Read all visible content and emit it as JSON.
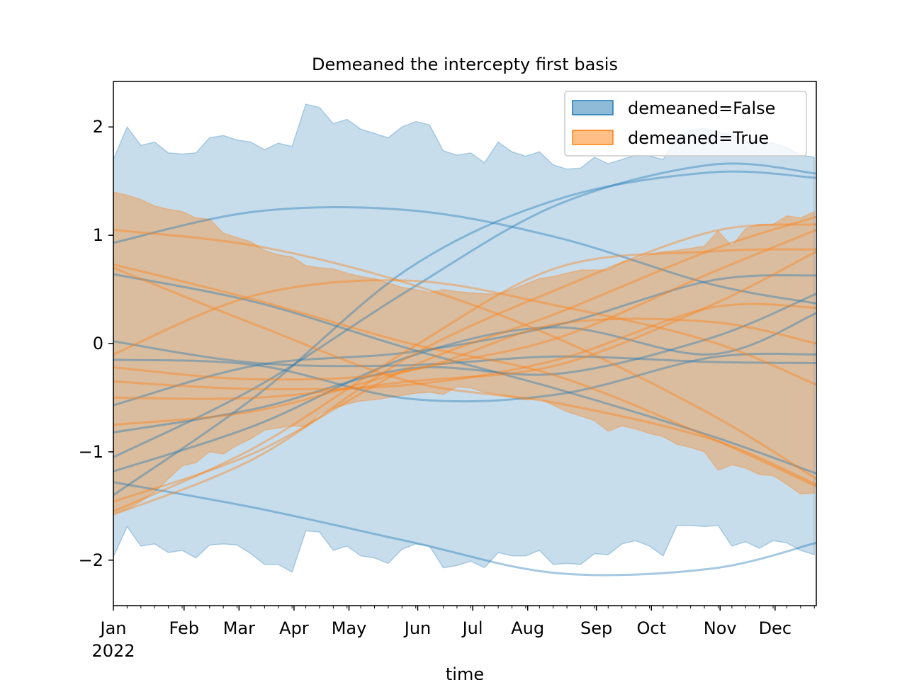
{
  "chart_data": {
    "type": "area",
    "title": "Demeaned the intercepty first basis",
    "xlabel": "time",
    "ylabel": "",
    "xlim": [
      "2022-01-01",
      "2022-12-25"
    ],
    "ylim": [
      -2.42,
      2.42
    ],
    "y_ticks": [
      -2,
      -1,
      0,
      1,
      2
    ],
    "y_tick_labels": [
      "−2",
      "−1",
      "0",
      "1",
      "2"
    ],
    "x_ticks": [
      {
        "date": "2022-01-01",
        "label": "Jan",
        "sublabel": "2022"
      },
      {
        "date": "2022-02-06",
        "label": "Feb",
        "sublabel": ""
      },
      {
        "date": "2022-03-06",
        "label": "Mar",
        "sublabel": ""
      },
      {
        "date": "2022-04-03",
        "label": "Apr",
        "sublabel": ""
      },
      {
        "date": "2022-05-01",
        "label": "May",
        "sublabel": ""
      },
      {
        "date": "2022-06-05",
        "label": "Jun",
        "sublabel": ""
      },
      {
        "date": "2022-07-03",
        "label": "Jul",
        "sublabel": ""
      },
      {
        "date": "2022-07-31",
        "label": "Aug",
        "sublabel": ""
      },
      {
        "date": "2022-09-04",
        "label": "Sep",
        "sublabel": ""
      },
      {
        "date": "2022-10-02",
        "label": "Oct",
        "sublabel": ""
      },
      {
        "date": "2022-11-06",
        "label": "Nov",
        "sublabel": ""
      },
      {
        "date": "2022-12-04",
        "label": "Dec",
        "sublabel": ""
      }
    ],
    "legend": {
      "placement": "top-right",
      "entries": [
        "demeaned=False",
        "demeaned=True"
      ]
    },
    "grid": false,
    "series": [
      {
        "name": "demeaned=False",
        "color": "#1f77b4",
        "band_x": [
          "2022-01-01",
          "2022-01-08",
          "2022-01-15",
          "2022-01-22",
          "2022-01-29",
          "2022-02-05",
          "2022-02-12",
          "2022-02-19",
          "2022-02-26",
          "2022-03-05",
          "2022-03-12",
          "2022-03-19",
          "2022-03-26",
          "2022-04-02",
          "2022-04-09",
          "2022-04-16",
          "2022-04-23",
          "2022-04-30",
          "2022-05-07",
          "2022-05-14",
          "2022-05-21",
          "2022-05-28",
          "2022-06-04",
          "2022-06-11",
          "2022-06-18",
          "2022-06-25",
          "2022-07-02",
          "2022-07-09",
          "2022-07-16",
          "2022-07-23",
          "2022-07-30",
          "2022-08-06",
          "2022-08-13",
          "2022-08-20",
          "2022-08-27",
          "2022-09-03",
          "2022-09-10",
          "2022-09-17",
          "2022-09-24",
          "2022-10-01",
          "2022-10-08",
          "2022-10-15",
          "2022-10-22",
          "2022-10-29",
          "2022-11-05",
          "2022-11-12",
          "2022-11-19",
          "2022-11-26",
          "2022-12-03",
          "2022-12-10",
          "2022-12-17",
          "2022-12-24"
        ],
        "band_upper": [
          1.7,
          2.0,
          1.83,
          1.86,
          1.76,
          1.75,
          1.76,
          1.9,
          1.92,
          1.88,
          1.86,
          1.79,
          1.85,
          1.82,
          2.21,
          2.18,
          2.03,
          2.07,
          1.98,
          1.94,
          1.9,
          2.0,
          2.05,
          2.02,
          1.78,
          1.74,
          1.76,
          1.67,
          1.86,
          1.77,
          1.73,
          1.77,
          1.65,
          1.61,
          1.62,
          1.72,
          1.66,
          1.7,
          1.74,
          1.73,
          1.7,
          1.9,
          1.97,
          1.99,
          1.95,
          1.93,
          1.87,
          1.87,
          1.85,
          1.81,
          1.74,
          1.72
        ],
        "band_lower": [
          -1.97,
          -1.69,
          -1.87,
          -1.85,
          -1.93,
          -1.91,
          -1.98,
          -1.86,
          -1.85,
          -1.86,
          -1.94,
          -2.04,
          -2.04,
          -2.11,
          -1.73,
          -1.74,
          -1.91,
          -1.87,
          -1.96,
          -1.98,
          -2.03,
          -1.9,
          -1.85,
          -1.87,
          -2.07,
          -2.05,
          -2.01,
          -2.07,
          -1.93,
          -1.96,
          -1.96,
          -1.91,
          -2.04,
          -2.03,
          -2.04,
          -1.94,
          -1.95,
          -1.85,
          -1.82,
          -1.87,
          -1.96,
          -1.68,
          -1.68,
          -1.69,
          -1.68,
          -1.87,
          -1.83,
          -1.89,
          -1.82,
          -1.84,
          -1.91,
          -1.95
        ],
        "lines": [
          {
            "x": [
              "2022-01-01",
              "2022-03-15",
              "2022-06-01",
              "2022-08-15",
              "2022-11-01",
              "2022-12-25"
            ],
            "y": [
              0.93,
              1.22,
              1.23,
              0.98,
              0.55,
              0.37
            ]
          },
          {
            "x": [
              "2022-01-01",
              "2022-03-15",
              "2022-06-01",
              "2022-08-15",
              "2022-11-01",
              "2022-12-25"
            ],
            "y": [
              -1.28,
              -1.52,
              -1.83,
              -2.12,
              -2.08,
              -1.84
            ]
          },
          {
            "x": [
              "2022-01-01",
              "2022-03-15",
              "2022-06-01",
              "2022-08-15",
              "2022-11-01",
              "2022-12-25"
            ],
            "y": [
              -0.15,
              -0.2,
              -0.51,
              -0.47,
              -0.13,
              -0.1
            ]
          },
          {
            "x": [
              "2022-01-01",
              "2022-03-15",
              "2022-06-01",
              "2022-08-15",
              "2022-11-01",
              "2022-12-25"
            ],
            "y": [
              -1.4,
              -0.48,
              0.7,
              1.33,
              1.58,
              1.53
            ]
          },
          {
            "x": [
              "2022-01-01",
              "2022-03-15",
              "2022-06-01",
              "2022-08-15",
              "2022-11-01",
              "2022-12-25"
            ],
            "y": [
              -1.05,
              -0.4,
              0.5,
              1.28,
              1.65,
              1.57
            ]
          },
          {
            "x": [
              "2022-01-01",
              "2022-03-15",
              "2022-06-01",
              "2022-08-15",
              "2022-11-01",
              "2022-12-25"
            ],
            "y": [
              0.64,
              0.38,
              -0.05,
              -0.42,
              -0.85,
              -1.2
            ]
          },
          {
            "x": [
              "2022-01-01",
              "2022-03-15",
              "2022-06-01",
              "2022-08-15",
              "2022-11-01",
              "2022-12-25"
            ],
            "y": [
              0.02,
              -0.18,
              -0.2,
              -0.12,
              -0.17,
              -0.18
            ]
          },
          {
            "x": [
              "2022-01-01",
              "2022-03-15",
              "2022-06-01",
              "2022-08-15",
              "2022-11-01",
              "2022-12-25"
            ],
            "y": [
              -0.57,
              -0.2,
              -0.08,
              0.17,
              0.58,
              0.63
            ]
          },
          {
            "x": [
              "2022-01-01",
              "2022-03-15",
              "2022-06-01",
              "2022-08-15",
              "2022-11-01",
              "2022-12-25"
            ],
            "y": [
              -0.82,
              -0.6,
              -0.23,
              -0.28,
              0.05,
              0.46
            ]
          },
          {
            "x": [
              "2022-01-01",
              "2022-03-15",
              "2022-06-01",
              "2022-08-15",
              "2022-11-01",
              "2022-12-25"
            ],
            "y": [
              -1.18,
              -0.75,
              -0.12,
              0.15,
              -0.1,
              0.28
            ]
          }
        ]
      },
      {
        "name": "demeaned=True",
        "color": "#ff7f0e",
        "band_x": [
          "2022-01-01",
          "2022-01-08",
          "2022-01-15",
          "2022-01-22",
          "2022-01-29",
          "2022-02-05",
          "2022-02-12",
          "2022-02-19",
          "2022-02-26",
          "2022-03-05",
          "2022-03-12",
          "2022-03-19",
          "2022-03-26",
          "2022-04-02",
          "2022-04-09",
          "2022-04-16",
          "2022-04-23",
          "2022-04-30",
          "2022-05-07",
          "2022-05-14",
          "2022-05-21",
          "2022-05-28",
          "2022-06-04",
          "2022-06-11",
          "2022-06-18",
          "2022-06-25",
          "2022-07-02",
          "2022-07-09",
          "2022-07-16",
          "2022-07-23",
          "2022-07-30",
          "2022-08-06",
          "2022-08-13",
          "2022-08-20",
          "2022-08-27",
          "2022-09-03",
          "2022-09-10",
          "2022-09-17",
          "2022-09-24",
          "2022-10-01",
          "2022-10-08",
          "2022-10-15",
          "2022-10-22",
          "2022-10-29",
          "2022-11-05",
          "2022-11-12",
          "2022-11-19",
          "2022-11-26",
          "2022-12-03",
          "2022-12-10",
          "2022-12-17",
          "2022-12-24"
        ],
        "band_upper": [
          1.4,
          1.37,
          1.33,
          1.27,
          1.24,
          1.22,
          1.16,
          1.15,
          1.02,
          0.98,
          0.94,
          0.86,
          0.82,
          0.8,
          0.72,
          0.7,
          0.69,
          0.65,
          0.62,
          0.6,
          0.56,
          0.52,
          0.5,
          0.47,
          0.5,
          0.48,
          0.47,
          0.46,
          0.46,
          0.5,
          0.55,
          0.6,
          0.62,
          0.65,
          0.68,
          0.68,
          0.68,
          0.75,
          0.78,
          0.82,
          0.85,
          0.86,
          0.88,
          0.9,
          1.04,
          0.9,
          1.06,
          1.1,
          1.1,
          1.18,
          1.16,
          1.22
        ],
        "band_lower": [
          -1.57,
          -1.53,
          -1.46,
          -1.37,
          -1.25,
          -1.13,
          -1.1,
          -1.0,
          -1.02,
          -0.94,
          -0.88,
          -0.8,
          -0.78,
          -0.76,
          -0.77,
          -0.65,
          -0.6,
          -0.56,
          -0.53,
          -0.52,
          -0.5,
          -0.48,
          -0.46,
          -0.45,
          -0.47,
          -0.4,
          -0.41,
          -0.45,
          -0.47,
          -0.5,
          -0.52,
          -0.51,
          -0.57,
          -0.63,
          -0.67,
          -0.71,
          -0.81,
          -0.76,
          -0.79,
          -0.83,
          -0.86,
          -0.93,
          -0.96,
          -1.0,
          -1.17,
          -1.12,
          -1.15,
          -1.21,
          -1.22,
          -1.3,
          -1.39,
          -1.38
        ],
        "lines": [
          {
            "x": [
              "2022-01-01",
              "2022-03-15",
              "2022-06-01",
              "2022-08-15",
              "2022-11-01",
              "2022-12-25"
            ],
            "y": [
              1.05,
              0.9,
              0.55,
              0.05,
              -0.65,
              -1.25
            ]
          },
          {
            "x": [
              "2022-01-01",
              "2022-03-15",
              "2022-06-01",
              "2022-08-15",
              "2022-11-01",
              "2022-12-25"
            ],
            "y": [
              0.73,
              0.4,
              0.0,
              -0.3,
              -0.87,
              -1.32
            ]
          },
          {
            "x": [
              "2022-01-01",
              "2022-03-15",
              "2022-06-01",
              "2022-08-15",
              "2022-11-01",
              "2022-12-25"
            ],
            "y": [
              0.7,
              0.17,
              -0.35,
              -0.55,
              -0.88,
              -1.3
            ]
          },
          {
            "x": [
              "2022-01-01",
              "2022-03-15",
              "2022-06-01",
              "2022-08-15",
              "2022-11-01",
              "2022-12-25"
            ],
            "y": [
              -0.1,
              0.45,
              0.58,
              0.35,
              0.02,
              -0.38
            ]
          },
          {
            "x": [
              "2022-01-01",
              "2022-03-15",
              "2022-06-01",
              "2022-08-15",
              "2022-11-01",
              "2022-12-25"
            ],
            "y": [
              -0.22,
              -0.33,
              -0.25,
              0.18,
              0.2,
              0.0
            ]
          },
          {
            "x": [
              "2022-01-01",
              "2022-03-15",
              "2022-06-01",
              "2022-08-15",
              "2022-11-01",
              "2022-12-25"
            ],
            "y": [
              -0.35,
              -0.42,
              -0.38,
              -0.15,
              0.33,
              0.33
            ]
          },
          {
            "x": [
              "2022-01-01",
              "2022-03-15",
              "2022-06-01",
              "2022-08-15",
              "2022-11-01",
              "2022-12-25"
            ],
            "y": [
              -0.5,
              -0.5,
              -0.35,
              -0.2,
              0.35,
              0.85
            ]
          },
          {
            "x": [
              "2022-01-01",
              "2022-03-15",
              "2022-06-01",
              "2022-08-15",
              "2022-11-01",
              "2022-12-25"
            ],
            "y": [
              -0.75,
              -0.62,
              -0.25,
              0.05,
              0.65,
              1.05
            ]
          },
          {
            "x": [
              "2022-01-01",
              "2022-03-15",
              "2022-06-01",
              "2022-08-15",
              "2022-11-01",
              "2022-12-25"
            ],
            "y": [
              -1.46,
              -1.0,
              -0.22,
              0.28,
              0.86,
              1.17
            ]
          },
          {
            "x": [
              "2022-01-01",
              "2022-03-15",
              "2022-06-01",
              "2022-08-15",
              "2022-11-01",
              "2022-12-25"
            ],
            "y": [
              -1.58,
              -1.05,
              -0.12,
              0.5,
              1.03,
              1.1
            ]
          },
          {
            "x": [
              "2022-01-01",
              "2022-03-15",
              "2022-06-01",
              "2022-08-15",
              "2022-11-01",
              "2022-12-25"
            ],
            "y": [
              -1.55,
              -0.95,
              -0.05,
              0.7,
              0.85,
              0.87
            ]
          }
        ]
      }
    ]
  }
}
